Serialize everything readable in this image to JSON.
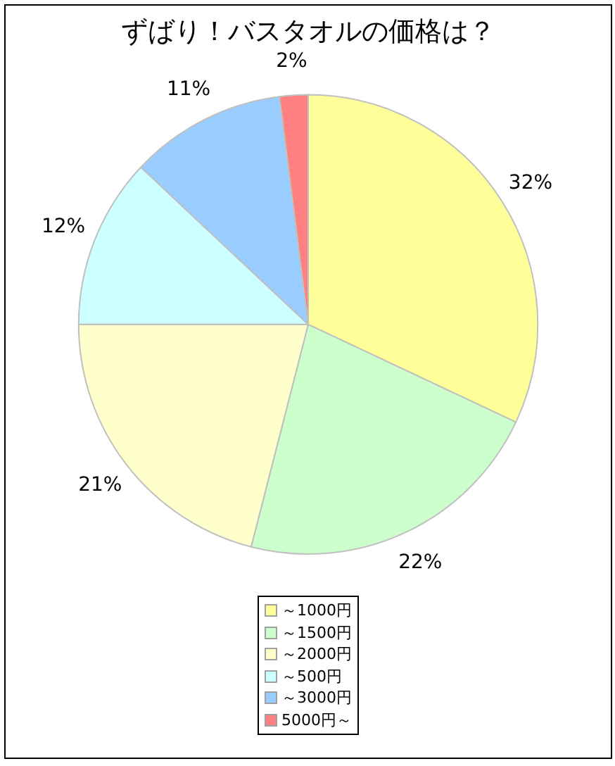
{
  "chart_data": {
    "type": "pie",
    "title": "ずばり！バスタオルの価格は？",
    "categories": [
      "～1000円",
      "～1500円",
      "～2000円",
      "～500円",
      "～3000円",
      "5000円～"
    ],
    "values": [
      32,
      22,
      21,
      12,
      11,
      2
    ],
    "colors": [
      "#ffff99",
      "#ccffcc",
      "#ffffcc",
      "#ccffff",
      "#99ccff",
      "#ff8080"
    ],
    "value_labels": [
      "32%",
      "22%",
      "21%",
      "12%",
      "11%",
      "2%"
    ],
    "legend": "bottom"
  }
}
